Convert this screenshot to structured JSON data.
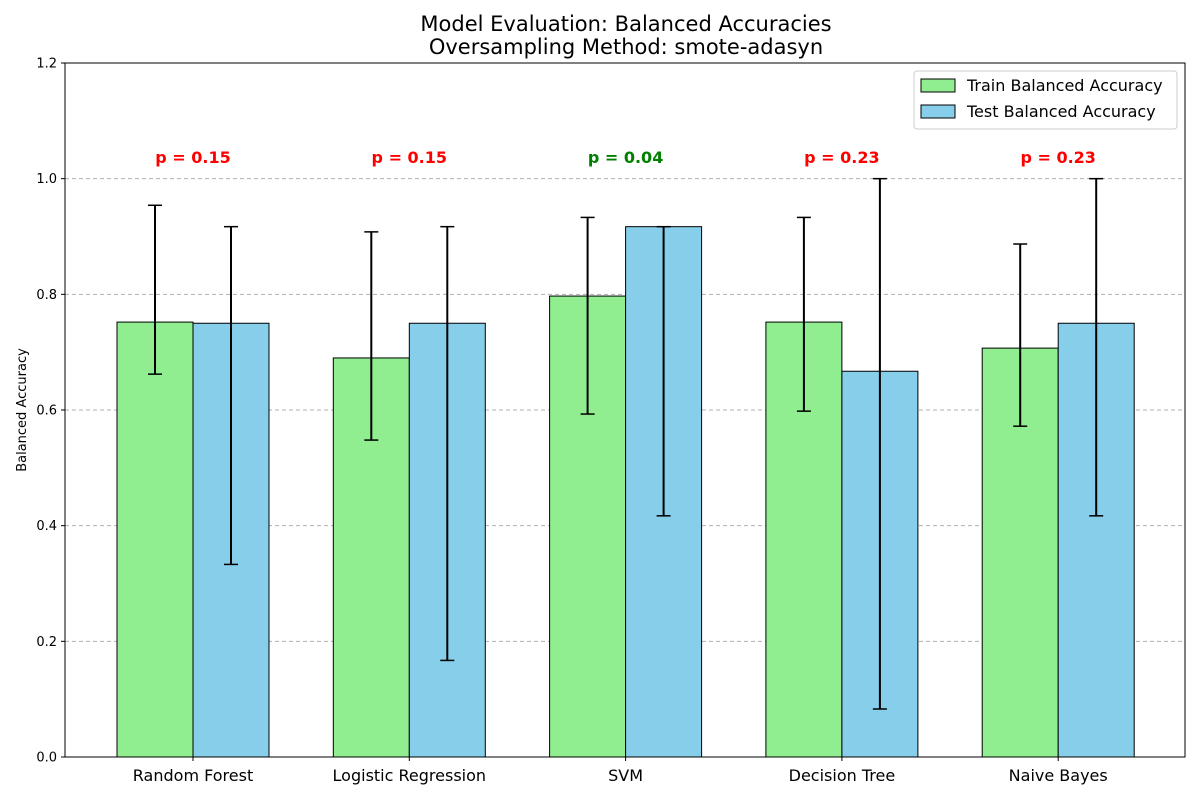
{
  "chart_data": {
    "type": "bar",
    "title": "Model Evaluation: Balanced Accuracies",
    "subtitle": "Oversampling Method: smote-adasyn",
    "xlabel": "",
    "ylabel": "Balanced Accuracy",
    "ylim": [
      0,
      1.2
    ],
    "yticks": [
      "0.0",
      "0.2",
      "0.4",
      "0.6",
      "0.8",
      "1.0",
      "1.2"
    ],
    "grid": "y-dashed",
    "legend_position": "top-right",
    "categories": [
      "Random Forest",
      "Logistic Regression",
      "SVM",
      "Decision Tree",
      "Naive Bayes"
    ],
    "series": [
      {
        "name": "Train Balanced Accuracy",
        "color": "#90EE90",
        "values": [
          0.752,
          0.69,
          0.797,
          0.752,
          0.707
        ],
        "error_low": [
          0.662,
          0.548,
          0.593,
          0.598,
          0.572
        ],
        "error_high": [
          0.954,
          0.908,
          0.933,
          0.933,
          0.887
        ]
      },
      {
        "name": "Test Balanced Accuracy",
        "color": "#87CEEB",
        "values": [
          0.75,
          0.75,
          0.917,
          0.667,
          0.75
        ],
        "error_low": [
          0.333,
          0.167,
          0.417,
          0.083,
          0.417
        ],
        "error_high": [
          0.917,
          0.917,
          0.917,
          1.0,
          1.0
        ]
      }
    ],
    "annotations": [
      {
        "text": "p = 0.15",
        "color": "#ff0000"
      },
      {
        "text": "p = 0.15",
        "color": "#ff0000"
      },
      {
        "text": "p = 0.04",
        "color": "#008000"
      },
      {
        "text": "p = 0.23",
        "color": "#ff0000"
      },
      {
        "text": "p = 0.23",
        "color": "#ff0000"
      }
    ]
  }
}
